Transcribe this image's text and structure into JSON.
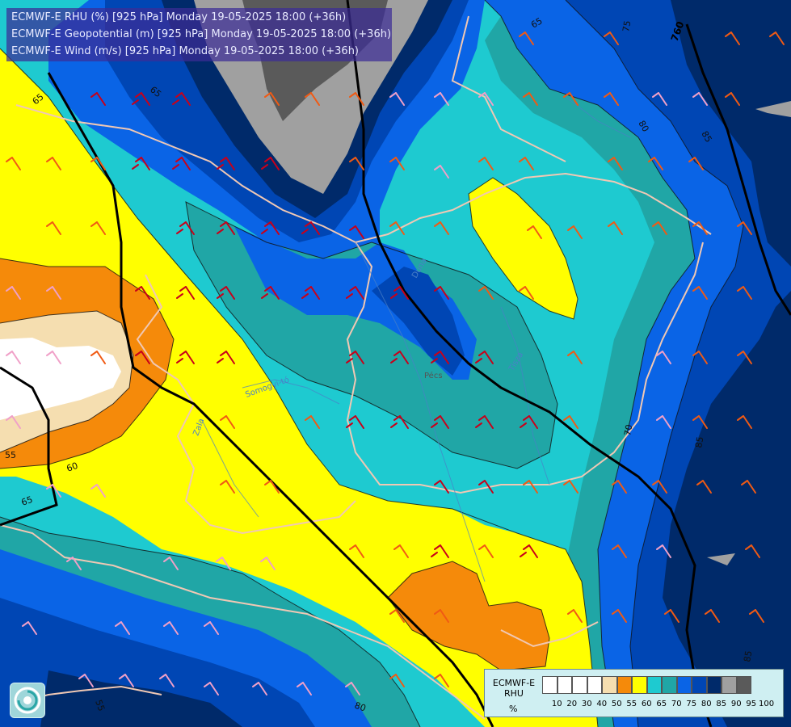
{
  "title_lines": [
    "ECMWF-E RHU (%) [925 hPa] Monday 19-05-2025 18:00 (+36h)",
    "ECMWF-E Geopotential (m) [925 hPa] Monday 19-05-2025 18:00 (+36h)",
    "ECMWF-E Wind (m/s) [925 hPa] Monday 19-05-2025 18:00 (+36h)"
  ],
  "legend": {
    "line1": "ECMWF-E",
    "line2": "RHU",
    "unit": "%",
    "ticks": [
      "10",
      "20",
      "30",
      "40",
      "50",
      "55",
      "60",
      "65",
      "70",
      "75",
      "80",
      "85",
      "90",
      "95",
      "100"
    ],
    "colors": [
      "#ffffff",
      "#ffffff",
      "#ffffff",
      "#ffffff",
      "#f5deb0",
      "#f58a0a",
      "#ffff00",
      "#1ecad0",
      "#20a6a6",
      "#0a64e6",
      "#0046b4",
      "#002a6a",
      "#a0a0a0",
      "#5a5a5a"
    ]
  },
  "contour_labels": {
    "rh": [
      "65",
      "65",
      "65",
      "75",
      "80",
      "85",
      "70",
      "85",
      "55",
      "60",
      "65",
      "80",
      "55",
      "85"
    ],
    "geopotential": [
      "760"
    ]
  },
  "map_colors": {
    "yellow": "#ffff00",
    "orange": "#f58a0a",
    "tan": "#f5deb0",
    "cyan": "#1ecad0",
    "teal": "#20a6a6",
    "blue": "#0a64e6",
    "midblue": "#0046b4",
    "navy": "#002a6a",
    "grey": "#a0a0a0",
    "darkgrey": "#5a5a5a",
    "border": "#f0c8b4",
    "river": "#4a80c8"
  },
  "place_labels": [
    "Somogyi-tó",
    "Zala",
    "Duna",
    "Tisza",
    "Pécs"
  ]
}
